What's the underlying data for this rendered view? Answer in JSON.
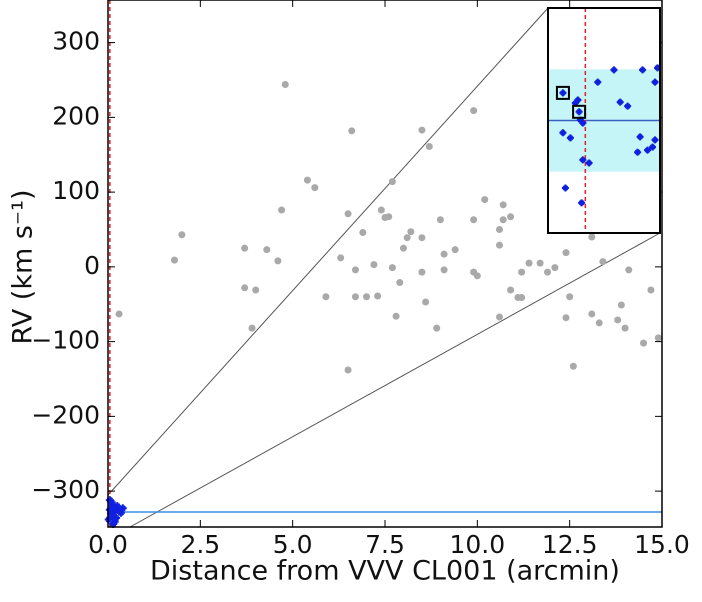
{
  "chart_data": [
    {
      "type": "scatter",
      "xlabel": "Distance from VVV CL001 (arcmin)",
      "ylabel": "RV (km s⁻¹)",
      "xlim": [
        0,
        15
      ],
      "ylim": [
        -348,
        357
      ],
      "xticks": [
        {
          "value": 0,
          "label": "0.0"
        },
        2.5,
        {
          "value": 5,
          "label": "5.0"
        },
        7.5,
        {
          "value": 10,
          "label": "10.0"
        },
        12.5,
        {
          "value": 15,
          "label": "15.0"
        }
      ],
      "yticks": [
        {
          "value": -300,
          "label": "−300"
        },
        {
          "value": -200,
          "label": "−200"
        },
        {
          "value": -100,
          "label": "−100"
        },
        0,
        100,
        200,
        300
      ],
      "hline": -328,
      "hline_color": "#3a8ee6",
      "vline": 0.05,
      "vline_color": "#e0202a",
      "series": [
        {
          "color": "#a9a9a9",
          "x": [
            4.8,
            9.9,
            6.6,
            8.5,
            8.7,
            2.0,
            1.8,
            5.4,
            5.6,
            4.7,
            7.7,
            6.5,
            7.4,
            7.5,
            7.6,
            6.9,
            8.2,
            8.5,
            9.0,
            9.9,
            10.2,
            10.7,
            10.7,
            10.9,
            10.6,
            10.6,
            9.4,
            9.1,
            9.9,
            10.0,
            8.1,
            8.0,
            6.3,
            6.7,
            7.2,
            7.7,
            7.9,
            7.0,
            7.3,
            6.7,
            5.9,
            7.8,
            8.6,
            8.9,
            8.5,
            9.1,
            3.7,
            4.3,
            4.6,
            3.7,
            4.0,
            3.9,
            0.3,
            6.5,
            11.2,
            11.4,
            11.7,
            11.9,
            12.1,
            12.4,
            12.4,
            12.5,
            12.6,
            10.9,
            11.1,
            11.2,
            10.6,
            13.1,
            13.3,
            13.4,
            13.8,
            13.9,
            14.0,
            14.5,
            14.7,
            14.9,
            13.1,
            14.1
          ],
          "values": [
            244,
            209,
            182,
            183,
            161,
            43,
            9,
            116,
            106,
            76,
            114,
            71,
            76,
            66,
            67,
            46,
            47,
            39,
            63,
            63,
            90,
            83,
            63,
            67,
            50,
            29,
            23,
            17,
            -7,
            -12,
            39,
            25,
            12,
            -4,
            3,
            -1,
            -21,
            -40,
            -39,
            -40,
            -40,
            -66,
            -47,
            -82,
            -7,
            -4,
            25,
            23,
            8,
            -28,
            -31,
            -82,
            -63,
            -138,
            -7,
            5,
            5,
            -7,
            -1,
            19,
            -68,
            -40,
            -133,
            -31,
            -41,
            -41,
            -67,
            -63,
            -75,
            7,
            -71,
            -51,
            -82,
            -102,
            -31,
            -95,
            40,
            -4
          ]
        },
        {
          "color": "#1020e0",
          "x": [
            0.05,
            0.1,
            0.15,
            0.2,
            0.08,
            0.12,
            0.3,
            0.25,
            0.02,
            0.18,
            0.35,
            0.1,
            0.05,
            0.22,
            0.4,
            0.14
          ],
          "values": [
            -312,
            -318,
            -322,
            -326,
            -330,
            -334,
            -327,
            -320,
            -338,
            -341,
            -329,
            -315,
            -325,
            -336,
            -323,
            -344
          ]
        }
      ]
    },
    {
      "type": "scatter",
      "xlim": [
        -0.1,
        0.35
      ],
      "ylim": [
        -350,
        -306
      ],
      "band": [
        -338,
        -318
      ],
      "band_color": "#c6f5f7",
      "hline": -328,
      "hline_color": "#3a60c0",
      "vline": 0.05,
      "vline_color": "#e0202a",
      "highlight": [
        0,
        1
      ],
      "series": [
        {
          "color": "#1020e0",
          "x": [
            -0.04,
            0.025,
            0.02,
            0.03,
            0.04,
            0.01,
            0.1,
            0.165,
            0.28,
            0.34,
            0.33,
            0.19,
            0.22,
            -0.04,
            -0.01,
            0.04,
            0.065,
            0.27,
            0.33,
            0.26,
            0.3,
            0.32,
            -0.03,
            0.035
          ],
          "values": [
            -322.6,
            -326.3,
            -324,
            -327.9,
            -328.5,
            -324.6,
            -320.5,
            -318.1,
            -318.1,
            -317.7,
            -320.5,
            -324.4,
            -325.2,
            -330.4,
            -331.4,
            -335.7,
            -336.3,
            -331.2,
            -331.8,
            -334.2,
            -333.8,
            -333.2,
            -341.2,
            -344.1
          ]
        }
      ]
    }
  ]
}
